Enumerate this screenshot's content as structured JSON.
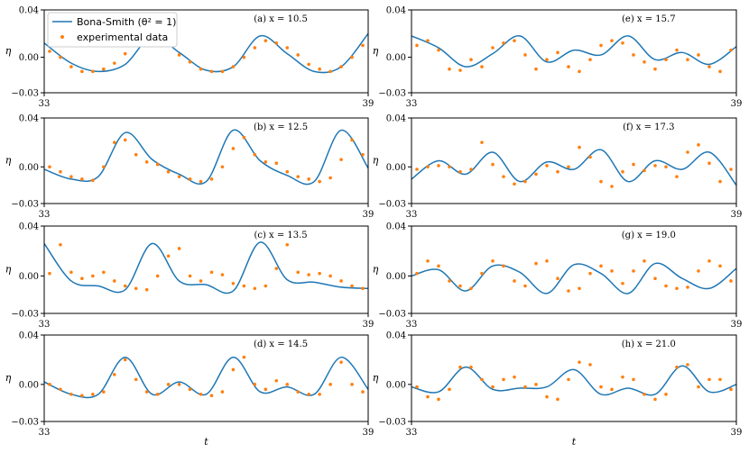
{
  "chart_data": {
    "type": "line",
    "legend": {
      "placement": "top-left",
      "model_label": "Bona-Smith (θ² = 1)",
      "data_label": "experimental data"
    },
    "ylabel": "η",
    "xlabel": "t",
    "xlim": [
      33,
      39
    ],
    "ylim": [
      -0.03,
      0.04
    ],
    "xticks": [
      "33",
      "39"
    ],
    "yticks": [
      "−0.03",
      "0.00",
      "0.04"
    ],
    "colors": {
      "model": "#1f77b4",
      "data": "#ff7f0e"
    },
    "panels": [
      {
        "title": "(a) x = 10.5",
        "model": {
          "x": [
            33,
            33.5,
            34,
            34.5,
            35,
            35.5,
            36,
            36.5,
            37,
            37.5,
            38,
            38.5,
            39
          ],
          "y": [
            0.012,
            -0.005,
            -0.012,
            -0.006,
            0.018,
            0.004,
            -0.011,
            -0.008,
            0.018,
            0.003,
            -0.012,
            -0.008,
            0.02
          ]
        },
        "data": {
          "x": [
            33.1,
            33.3,
            33.5,
            33.7,
            33.9,
            34.1,
            34.3,
            34.5,
            34.7,
            34.9,
            35.1,
            35.3,
            35.5,
            35.7,
            35.9,
            36.1,
            36.3,
            36.5,
            36.7,
            36.9,
            37.1,
            37.3,
            37.5,
            37.7,
            37.9,
            38.1,
            38.3,
            38.5,
            38.7,
            38.9
          ],
          "y": [
            0.005,
            0.0,
            -0.008,
            -0.012,
            -0.012,
            -0.01,
            -0.005,
            0.003,
            0.01,
            0.016,
            0.014,
            0.01,
            0.002,
            -0.004,
            -0.01,
            -0.012,
            -0.012,
            -0.008,
            0.0,
            0.008,
            0.014,
            0.012,
            0.008,
            0.002,
            -0.006,
            -0.01,
            -0.012,
            -0.008,
            0.0,
            0.01
          ]
        }
      },
      {
        "title": "(b) x = 12.5",
        "model": {
          "x": [
            33,
            33.5,
            34,
            34.5,
            35,
            35.5,
            36,
            36.5,
            37,
            37.5,
            38,
            38.5,
            39
          ],
          "y": [
            -0.002,
            -0.01,
            -0.008,
            0.028,
            0.006,
            -0.006,
            -0.012,
            0.03,
            0.005,
            -0.007,
            -0.012,
            0.03,
            -0.001
          ]
        },
        "data": {
          "x": [
            33.1,
            33.3,
            33.5,
            33.7,
            33.9,
            34.1,
            34.3,
            34.5,
            34.7,
            34.9,
            35.1,
            35.3,
            35.5,
            35.7,
            35.9,
            36.1,
            36.3,
            36.5,
            36.7,
            36.9,
            37.1,
            37.3,
            37.5,
            37.7,
            37.9,
            38.1,
            38.3,
            38.5,
            38.7,
            38.9
          ],
          "y": [
            0.0,
            -0.004,
            -0.008,
            -0.01,
            -0.011,
            0.0,
            0.02,
            0.022,
            0.01,
            0.004,
            0.002,
            -0.004,
            -0.008,
            -0.01,
            -0.012,
            -0.01,
            0.0,
            0.015,
            0.024,
            0.01,
            0.004,
            0.003,
            -0.004,
            -0.008,
            -0.01,
            -0.012,
            -0.009,
            0.006,
            0.022,
            0.01
          ]
        }
      },
      {
        "title": "(c) x = 13.5",
        "model": {
          "x": [
            33,
            33.5,
            34,
            34.5,
            35,
            35.5,
            36,
            36.5,
            37,
            37.5,
            38,
            38.5,
            39
          ],
          "y": [
            0.026,
            -0.004,
            -0.008,
            -0.011,
            0.026,
            -0.004,
            -0.007,
            -0.012,
            0.027,
            -0.003,
            -0.005,
            -0.009,
            -0.01
          ]
        },
        "data": {
          "x": [
            33.1,
            33.3,
            33.5,
            33.7,
            33.9,
            34.1,
            34.3,
            34.5,
            34.7,
            34.9,
            35.1,
            35.3,
            35.5,
            35.7,
            35.9,
            36.1,
            36.3,
            36.5,
            36.7,
            36.9,
            37.1,
            37.3,
            37.5,
            37.7,
            37.9,
            38.1,
            38.3,
            38.5,
            38.7,
            38.9
          ],
          "y": [
            0.002,
            0.025,
            0.003,
            -0.002,
            0.0,
            0.003,
            -0.004,
            -0.008,
            -0.01,
            -0.011,
            0.0,
            0.016,
            0.022,
            0.0,
            -0.004,
            0.003,
            0.001,
            -0.006,
            -0.008,
            -0.01,
            -0.008,
            0.006,
            0.025,
            0.003,
            0.001,
            0.002,
            0.0,
            -0.004,
            -0.008,
            -0.01
          ]
        }
      },
      {
        "title": "(d) x = 14.5",
        "model": {
          "x": [
            33,
            33.5,
            34,
            34.5,
            35,
            35.5,
            36,
            36.5,
            37,
            37.5,
            38,
            38.5,
            39
          ],
          "y": [
            0.002,
            -0.008,
            -0.008,
            0.022,
            -0.008,
            0.002,
            -0.008,
            0.022,
            -0.006,
            -0.002,
            -0.008,
            0.022,
            -0.004
          ]
        },
        "data": {
          "x": [
            33.1,
            33.3,
            33.5,
            33.7,
            33.9,
            34.1,
            34.3,
            34.5,
            34.7,
            34.9,
            35.1,
            35.3,
            35.5,
            35.7,
            35.9,
            36.1,
            36.3,
            36.5,
            36.7,
            36.9,
            37.1,
            37.3,
            37.5,
            37.7,
            37.9,
            38.1,
            38.3,
            38.5,
            38.7,
            38.9
          ],
          "y": [
            0.0,
            -0.004,
            -0.008,
            -0.009,
            -0.008,
            -0.006,
            0.008,
            0.02,
            0.004,
            -0.006,
            -0.008,
            0.0,
            0.0,
            -0.004,
            -0.008,
            -0.009,
            -0.006,
            0.012,
            0.022,
            0.0,
            -0.004,
            0.003,
            0.0,
            -0.006,
            -0.008,
            -0.008,
            0.0,
            0.018,
            0.0,
            -0.006
          ]
        }
      },
      {
        "title": "(e) x = 15.7",
        "model": {
          "x": [
            33,
            33.5,
            34,
            34.5,
            35,
            35.5,
            36,
            36.5,
            37,
            37.5,
            38,
            38.5,
            39
          ],
          "y": [
            0.018,
            0.008,
            -0.008,
            0.003,
            0.018,
            -0.004,
            0.006,
            0.002,
            0.018,
            -0.002,
            0.004,
            -0.006,
            0.009
          ]
        },
        "data": {
          "x": [
            33.1,
            33.3,
            33.5,
            33.7,
            33.9,
            34.1,
            34.3,
            34.5,
            34.7,
            34.9,
            35.1,
            35.3,
            35.5,
            35.7,
            35.9,
            36.1,
            36.3,
            36.5,
            36.7,
            36.9,
            37.1,
            37.3,
            37.5,
            37.7,
            37.9,
            38.1,
            38.3,
            38.5,
            38.7,
            38.9
          ],
          "y": [
            0.01,
            0.014,
            0.006,
            -0.01,
            -0.011,
            -0.002,
            -0.008,
            0.008,
            0.012,
            0.014,
            0.002,
            -0.01,
            -0.002,
            0.004,
            -0.008,
            -0.012,
            -0.002,
            0.01,
            0.014,
            0.012,
            0.002,
            -0.004,
            -0.01,
            -0.002,
            0.006,
            -0.002,
            0.002,
            -0.008,
            -0.012,
            0.006
          ]
        }
      },
      {
        "title": "(f) x = 17.3",
        "model": {
          "x": [
            33,
            33.5,
            34,
            34.5,
            35,
            35.5,
            36,
            36.5,
            37,
            37.5,
            38,
            38.5,
            39
          ],
          "y": [
            -0.01,
            0.005,
            -0.006,
            0.012,
            -0.012,
            0.004,
            -0.002,
            0.014,
            -0.012,
            0.005,
            -0.002,
            0.012,
            -0.015
          ]
        },
        "data": {
          "x": [
            33.1,
            33.3,
            33.5,
            33.7,
            33.9,
            34.1,
            34.3,
            34.5,
            34.7,
            34.9,
            35.1,
            35.3,
            35.5,
            35.7,
            35.9,
            36.1,
            36.3,
            36.5,
            36.7,
            36.9,
            37.1,
            37.3,
            37.5,
            37.7,
            37.9,
            38.1,
            38.3,
            38.5,
            38.7,
            38.9
          ],
          "y": [
            -0.002,
            0.0,
            0.001,
            0.0,
            -0.004,
            -0.002,
            0.02,
            0.002,
            -0.008,
            -0.014,
            -0.012,
            -0.006,
            0.001,
            -0.004,
            0.0,
            0.016,
            0.008,
            -0.012,
            -0.016,
            -0.004,
            0.002,
            -0.003,
            0.001,
            0.0,
            -0.008,
            0.012,
            0.018,
            0.003,
            -0.012,
            -0.002
          ]
        }
      },
      {
        "title": "(g) x = 19.0",
        "model": {
          "x": [
            33,
            33.5,
            34,
            34.5,
            35,
            35.5,
            36,
            36.5,
            37,
            37.5,
            38,
            38.5,
            39
          ],
          "y": [
            0.0,
            0.005,
            -0.012,
            0.008,
            0.003,
            -0.014,
            0.009,
            0.002,
            -0.014,
            0.01,
            -0.002,
            -0.01,
            0.006
          ]
        },
        "data": {
          "x": [
            33.1,
            33.3,
            33.5,
            33.7,
            33.9,
            34.1,
            34.3,
            34.5,
            34.7,
            34.9,
            35.1,
            35.3,
            35.5,
            35.7,
            35.9,
            36.1,
            36.3,
            36.5,
            36.7,
            36.9,
            37.1,
            37.3,
            37.5,
            37.7,
            37.9,
            38.1,
            38.3,
            38.5,
            38.7,
            38.9
          ],
          "y": [
            0.002,
            0.012,
            0.008,
            -0.004,
            -0.008,
            -0.01,
            0.002,
            0.012,
            0.008,
            -0.004,
            -0.008,
            0.01,
            0.012,
            -0.002,
            -0.012,
            -0.01,
            0.002,
            0.008,
            0.004,
            -0.006,
            0.004,
            0.012,
            -0.002,
            -0.008,
            -0.01,
            -0.009,
            0.004,
            0.012,
            0.008,
            -0.004
          ]
        }
      },
      {
        "title": "(h) x = 21.0",
        "model": {
          "x": [
            33,
            33.5,
            34,
            34.5,
            35,
            35.5,
            36,
            36.5,
            37,
            37.5,
            38,
            38.5,
            39
          ],
          "y": [
            -0.002,
            -0.006,
            0.014,
            -0.004,
            -0.003,
            -0.002,
            0.012,
            -0.008,
            -0.003,
            -0.008,
            0.015,
            -0.006,
            0.0
          ]
        },
        "data": {
          "x": [
            33.1,
            33.3,
            33.5,
            33.7,
            33.9,
            34.1,
            34.3,
            34.5,
            34.7,
            34.9,
            35.1,
            35.3,
            35.5,
            35.7,
            35.9,
            36.1,
            36.3,
            36.5,
            36.7,
            36.9,
            37.1,
            37.3,
            37.5,
            37.7,
            37.9,
            38.1,
            38.3,
            38.5,
            38.7,
            38.9
          ],
          "y": [
            -0.002,
            -0.01,
            -0.012,
            -0.004,
            0.014,
            0.014,
            0.004,
            -0.002,
            0.004,
            0.006,
            -0.002,
            0.0,
            -0.01,
            -0.012,
            0.004,
            0.018,
            0.016,
            -0.002,
            -0.004,
            0.006,
            0.004,
            -0.008,
            -0.012,
            -0.008,
            0.014,
            0.016,
            -0.002,
            0.004,
            0.004,
            -0.004
          ]
        }
      }
    ]
  }
}
